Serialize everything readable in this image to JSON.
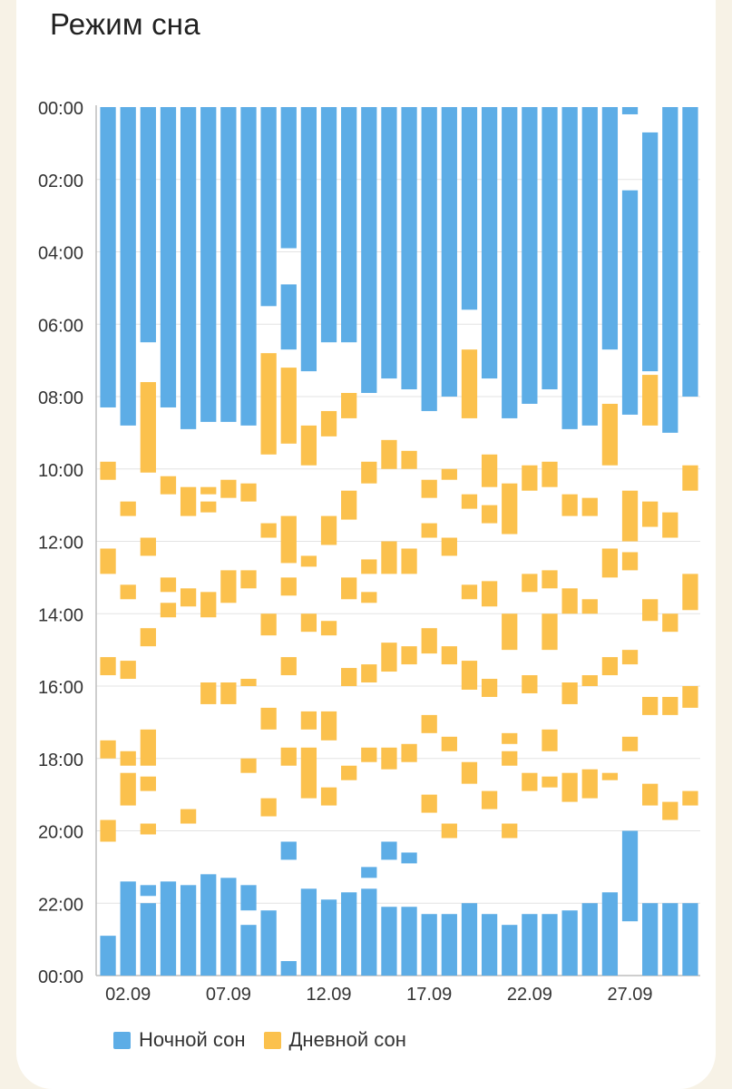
{
  "title": "Режим сна",
  "colors": {
    "night": "#5dade6",
    "day": "#fbc14d"
  },
  "legend": [
    {
      "key": "night",
      "label": "Ночной сон",
      "icon": "blue-square"
    },
    {
      "key": "day",
      "label": "Дневной сон",
      "icon": "yellow-square"
    }
  ],
  "chart_data": {
    "type": "bar",
    "orientation": "vertical-timeline",
    "y_axis_ticks": [
      "00:00",
      "02:00",
      "04:00",
      "06:00",
      "08:00",
      "10:00",
      "12:00",
      "14:00",
      "16:00",
      "18:00",
      "20:00",
      "22:00",
      "00:00"
    ],
    "ylim": [
      "00:00",
      "24:00"
    ],
    "x_tick_labels": [
      {
        "day": 2,
        "label": "02.09"
      },
      {
        "day": 7,
        "label": "07.09"
      },
      {
        "day": 12,
        "label": "12.09"
      },
      {
        "day": 17,
        "label": "17.09"
      },
      {
        "day": 22,
        "label": "22.09"
      },
      {
        "day": 27,
        "label": "27.09"
      }
    ],
    "grid": true,
    "legend_position": "bottom-left",
    "days": [
      {
        "day": 1,
        "night": [
          [
            0,
            8.3
          ],
          [
            22.9,
            24
          ]
        ],
        "day_sleep": [
          [
            9.8,
            10.3
          ],
          [
            12.2,
            12.9
          ],
          [
            15.2,
            15.7
          ],
          [
            17.5,
            18.0
          ],
          [
            19.7,
            20.3
          ]
        ]
      },
      {
        "day": 2,
        "night": [
          [
            0,
            8.8
          ],
          [
            21.4,
            24
          ]
        ],
        "day_sleep": [
          [
            10.9,
            11.3
          ],
          [
            13.2,
            13.6
          ],
          [
            15.3,
            15.8
          ],
          [
            17.8,
            18.2
          ],
          [
            18.4,
            19.3
          ]
        ]
      },
      {
        "day": 3,
        "night": [
          [
            0,
            6.5
          ],
          [
            21.5,
            21.8
          ],
          [
            22.0,
            24
          ]
        ],
        "day_sleep": [
          [
            7.6,
            10.1
          ],
          [
            11.9,
            12.4
          ],
          [
            14.4,
            14.9
          ],
          [
            17.2,
            18.2
          ],
          [
            18.5,
            18.9
          ],
          [
            19.8,
            20.1
          ]
        ]
      },
      {
        "day": 4,
        "night": [
          [
            0,
            8.3
          ],
          [
            21.4,
            24
          ]
        ],
        "day_sleep": [
          [
            10.2,
            10.7
          ],
          [
            13.0,
            13.4
          ],
          [
            13.7,
            14.1
          ]
        ]
      },
      {
        "day": 5,
        "night": [
          [
            0,
            8.9
          ],
          [
            21.5,
            24
          ]
        ],
        "day_sleep": [
          [
            10.5,
            11.3
          ],
          [
            13.3,
            13.8
          ],
          [
            19.4,
            19.8
          ]
        ]
      },
      {
        "day": 6,
        "night": [
          [
            0,
            8.7
          ],
          [
            21.2,
            24
          ]
        ],
        "day_sleep": [
          [
            10.5,
            10.7
          ],
          [
            10.9,
            11.2
          ],
          [
            13.4,
            14.1
          ],
          [
            15.9,
            16.5
          ]
        ]
      },
      {
        "day": 7,
        "night": [
          [
            0,
            8.7
          ],
          [
            21.3,
            24
          ]
        ],
        "day_sleep": [
          [
            10.3,
            10.8
          ],
          [
            12.8,
            13.7
          ],
          [
            15.9,
            16.5
          ]
        ]
      },
      {
        "day": 8,
        "night": [
          [
            0,
            8.8
          ],
          [
            21.5,
            22.2
          ],
          [
            22.6,
            24
          ]
        ],
        "day_sleep": [
          [
            10.4,
            10.9
          ],
          [
            12.8,
            13.3
          ],
          [
            15.8,
            16.0
          ],
          [
            18.0,
            18.4
          ]
        ]
      },
      {
        "day": 9,
        "night": [
          [
            0,
            5.5
          ],
          [
            22.2,
            24
          ]
        ],
        "day_sleep": [
          [
            6.8,
            9.6
          ],
          [
            11.5,
            11.9
          ],
          [
            14.0,
            14.6
          ],
          [
            16.6,
            17.2
          ],
          [
            19.1,
            19.6
          ]
        ]
      },
      {
        "day": 10,
        "night": [
          [
            0,
            3.9
          ],
          [
            4.9,
            6.7
          ],
          [
            20.3,
            20.8
          ],
          [
            23.6,
            24
          ]
        ],
        "day_sleep": [
          [
            7.2,
            9.3
          ],
          [
            11.3,
            12.6
          ],
          [
            13.0,
            13.5
          ],
          [
            15.2,
            15.7
          ],
          [
            17.7,
            18.2
          ]
        ]
      },
      {
        "day": 11,
        "night": [
          [
            0,
            7.3
          ],
          [
            21.6,
            24
          ]
        ],
        "day_sleep": [
          [
            8.8,
            9.9
          ],
          [
            12.4,
            12.7
          ],
          [
            14.0,
            14.5
          ],
          [
            16.7,
            17.2
          ],
          [
            17.7,
            19.1
          ]
        ]
      },
      {
        "day": 12,
        "night": [
          [
            0,
            6.5
          ],
          [
            21.9,
            24
          ]
        ],
        "day_sleep": [
          [
            8.4,
            9.1
          ],
          [
            11.3,
            12.1
          ],
          [
            14.2,
            14.6
          ],
          [
            16.7,
            17.5
          ],
          [
            18.8,
            19.3
          ]
        ]
      },
      {
        "day": 13,
        "night": [
          [
            0,
            6.5
          ],
          [
            21.7,
            24
          ]
        ],
        "day_sleep": [
          [
            7.9,
            8.6
          ],
          [
            10.6,
            11.4
          ],
          [
            13.0,
            13.6
          ],
          [
            15.5,
            16.0
          ],
          [
            18.2,
            18.6
          ]
        ]
      },
      {
        "day": 14,
        "night": [
          [
            0,
            7.9
          ],
          [
            21.6,
            24
          ],
          [
            21.0,
            21.3
          ]
        ],
        "day_sleep": [
          [
            9.8,
            10.4
          ],
          [
            12.5,
            12.9
          ],
          [
            13.4,
            13.7
          ],
          [
            15.4,
            15.9
          ],
          [
            17.7,
            18.1
          ]
        ]
      },
      {
        "day": 15,
        "night": [
          [
            0,
            7.5
          ],
          [
            20.3,
            20.8
          ],
          [
            22.1,
            24
          ]
        ],
        "day_sleep": [
          [
            9.2,
            10.0
          ],
          [
            12.0,
            12.9
          ],
          [
            14.8,
            15.6
          ],
          [
            17.7,
            18.3
          ]
        ]
      },
      {
        "day": 16,
        "night": [
          [
            0,
            7.8
          ],
          [
            20.6,
            20.9
          ],
          [
            22.1,
            24
          ]
        ],
        "day_sleep": [
          [
            9.5,
            10.0
          ],
          [
            12.2,
            12.9
          ],
          [
            14.9,
            15.4
          ],
          [
            17.6,
            18.1
          ]
        ]
      },
      {
        "day": 17,
        "night": [
          [
            0,
            8.4
          ],
          [
            22.3,
            24
          ]
        ],
        "day_sleep": [
          [
            10.3,
            10.8
          ],
          [
            11.5,
            11.9
          ],
          [
            14.4,
            15.1
          ],
          [
            16.8,
            17.3
          ],
          [
            19.0,
            19.5
          ]
        ]
      },
      {
        "day": 18,
        "night": [
          [
            0,
            8.0
          ],
          [
            22.3,
            24
          ]
        ],
        "day_sleep": [
          [
            10.0,
            10.3
          ],
          [
            11.9,
            12.4
          ],
          [
            14.9,
            15.4
          ],
          [
            17.4,
            17.8
          ],
          [
            19.8,
            20.2
          ]
        ]
      },
      {
        "day": 19,
        "night": [
          [
            0,
            5.6
          ],
          [
            22.0,
            24
          ]
        ],
        "day_sleep": [
          [
            6.7,
            8.6
          ],
          [
            10.7,
            11.1
          ],
          [
            13.2,
            13.6
          ],
          [
            15.3,
            16.1
          ],
          [
            18.1,
            18.7
          ]
        ]
      },
      {
        "day": 20,
        "night": [
          [
            0,
            7.5
          ],
          [
            22.3,
            24
          ]
        ],
        "day_sleep": [
          [
            9.6,
            10.5
          ],
          [
            11.0,
            11.5
          ],
          [
            13.1,
            13.8
          ],
          [
            15.8,
            16.3
          ],
          [
            18.9,
            19.4
          ]
        ]
      },
      {
        "day": 21,
        "night": [
          [
            0,
            8.6
          ],
          [
            22.6,
            24
          ]
        ],
        "day_sleep": [
          [
            10.4,
            11.8
          ],
          [
            14.0,
            15.0
          ],
          [
            17.3,
            17.6
          ],
          [
            17.8,
            18.2
          ],
          [
            19.8,
            20.2
          ]
        ]
      },
      {
        "day": 22,
        "night": [
          [
            0,
            8.2
          ],
          [
            22.3,
            24
          ]
        ],
        "day_sleep": [
          [
            9.9,
            10.6
          ],
          [
            12.9,
            13.4
          ],
          [
            15.7,
            16.2
          ],
          [
            18.4,
            18.9
          ]
        ]
      },
      {
        "day": 23,
        "night": [
          [
            0,
            7.8
          ],
          [
            22.3,
            24
          ]
        ],
        "day_sleep": [
          [
            9.8,
            10.5
          ],
          [
            12.8,
            13.3
          ],
          [
            14.0,
            15.0
          ],
          [
            17.2,
            17.8
          ],
          [
            18.5,
            18.8
          ]
        ]
      },
      {
        "day": 24,
        "night": [
          [
            0,
            8.9
          ],
          [
            22.2,
            24
          ]
        ],
        "day_sleep": [
          [
            10.7,
            11.3
          ],
          [
            13.3,
            14.0
          ],
          [
            15.9,
            16.5
          ],
          [
            18.4,
            19.2
          ]
        ]
      },
      {
        "day": 25,
        "night": [
          [
            0,
            8.8
          ],
          [
            22.0,
            24
          ]
        ],
        "day_sleep": [
          [
            10.8,
            11.3
          ],
          [
            13.6,
            14.0
          ],
          [
            15.7,
            16.0
          ],
          [
            18.3,
            19.1
          ]
        ]
      },
      {
        "day": 26,
        "night": [
          [
            0,
            6.7
          ],
          [
            21.7,
            24
          ]
        ],
        "day_sleep": [
          [
            8.2,
            9.9
          ],
          [
            12.2,
            13.0
          ],
          [
            15.2,
            15.7
          ],
          [
            18.4,
            18.6
          ]
        ]
      },
      {
        "day": 27,
        "night": [
          [
            0,
            0.2
          ],
          [
            2.3,
            8.5
          ],
          [
            20.0,
            22.5
          ]
        ],
        "day_sleep": [
          [
            10.6,
            12.0
          ],
          [
            12.3,
            12.8
          ],
          [
            15.0,
            15.4
          ],
          [
            17.4,
            17.8
          ]
        ]
      },
      {
        "day": 28,
        "night": [
          [
            0.7,
            7.3
          ],
          [
            22.0,
            24
          ]
        ],
        "day_sleep": [
          [
            7.4,
            8.8
          ],
          [
            10.9,
            11.6
          ],
          [
            13.6,
            14.2
          ],
          [
            16.3,
            16.8
          ],
          [
            18.7,
            19.3
          ]
        ]
      },
      {
        "day": 29,
        "night": [
          [
            0,
            9.0
          ],
          [
            22.0,
            24
          ]
        ],
        "day_sleep": [
          [
            11.2,
            11.9
          ],
          [
            14.0,
            14.5
          ],
          [
            16.3,
            16.8
          ],
          [
            19.2,
            19.7
          ]
        ]
      },
      {
        "day": 30,
        "night": [
          [
            0,
            8.0
          ],
          [
            22.0,
            24
          ]
        ],
        "day_sleep": [
          [
            9.9,
            10.6
          ],
          [
            12.9,
            13.9
          ],
          [
            16.0,
            16.6
          ],
          [
            18.9,
            19.3
          ]
        ]
      }
    ]
  }
}
